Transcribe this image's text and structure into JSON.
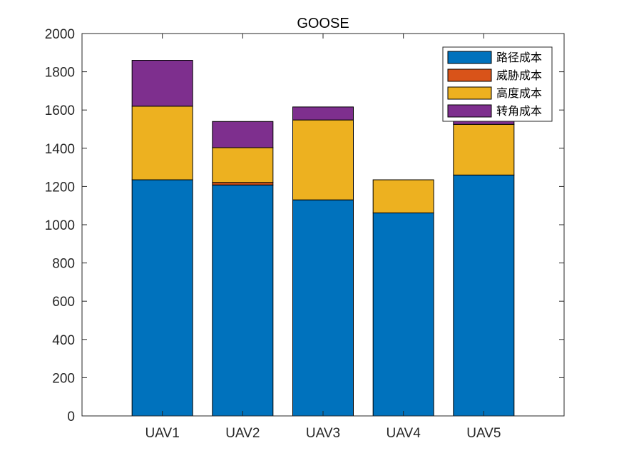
{
  "chart_data": {
    "type": "bar",
    "stacked": true,
    "title": "GOOSE",
    "xlabel": "",
    "ylabel": "",
    "categories": [
      "UAV1",
      "UAV2",
      "UAV3",
      "UAV4",
      "UAV5"
    ],
    "ylim": [
      0,
      2000
    ],
    "yticks": [
      "0",
      "200",
      "400",
      "600",
      "800",
      "1000",
      "1200",
      "1400",
      "1600",
      "1800",
      "2000"
    ],
    "grid": false,
    "legend_position": "top-right",
    "series": [
      {
        "name": "路径成本",
        "color": "#0072BD",
        "values": [
          1235,
          1208,
          1130,
          1062,
          1260
        ]
      },
      {
        "name": "威胁成本",
        "color": "#D95319",
        "values": [
          0,
          13,
          0,
          0,
          0
        ]
      },
      {
        "name": "高度成本",
        "color": "#EDB120",
        "values": [
          385,
          182,
          418,
          173,
          265
        ]
      },
      {
        "name": "转角成本",
        "color": "#7E2F8E",
        "values": [
          240,
          137,
          68,
          0,
          43
        ]
      }
    ]
  }
}
